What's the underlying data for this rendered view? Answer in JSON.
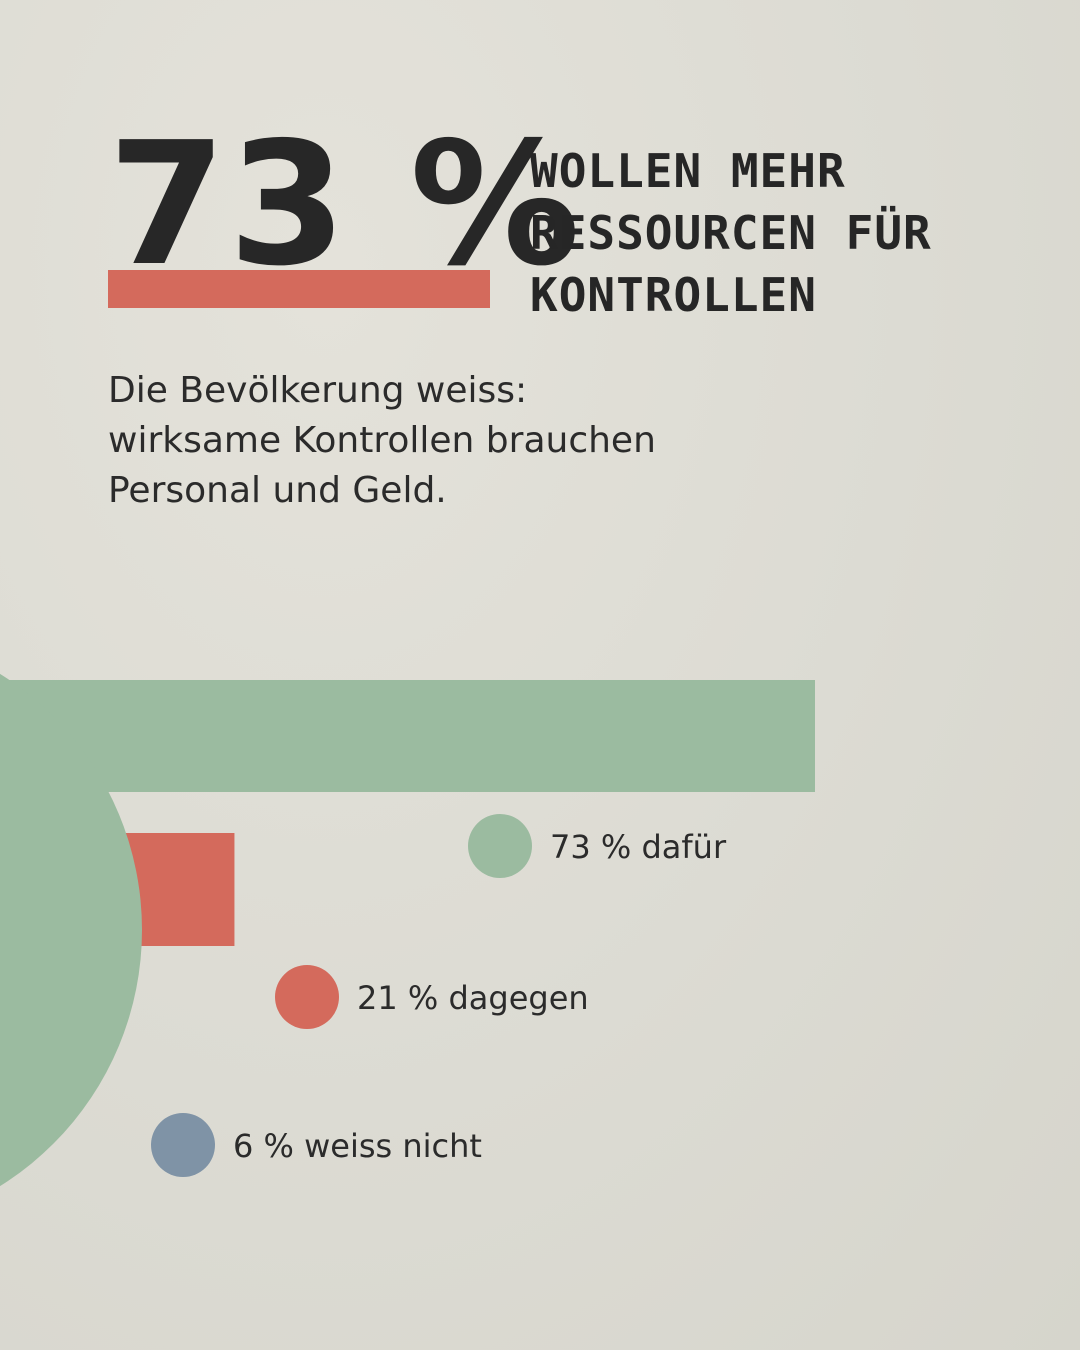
{
  "headline": {
    "big_number": "73 %",
    "lines": [
      "WOLLEN MEHR",
      "RESSOURCEN FÜR",
      "KONTROLLEN"
    ]
  },
  "intro": {
    "lines": [
      "Die Bevölkerung weiss:",
      "wirksame Kontrollen brauchen",
      "Personal und Geld."
    ]
  },
  "colors": {
    "accent_red": "#d46a5c",
    "green": "#9bbba0",
    "red": "#d46a5c",
    "blue": "#7f93a6",
    "text": "#262626"
  },
  "chart_data": {
    "type": "bar",
    "orientation": "horizontal",
    "categories": [
      "dafür",
      "dagegen",
      "weiss nicht"
    ],
    "values": [
      73,
      21,
      6
    ],
    "unit": "%",
    "labels": [
      "73 % dafür",
      "21 % dagegen",
      "6 % weiss nicht"
    ],
    "colors": [
      "#9bbba0",
      "#d46a5c",
      "#7f93a6"
    ],
    "xlim": [
      0,
      100
    ],
    "legend": "below-each-bar",
    "grid": false
  }
}
